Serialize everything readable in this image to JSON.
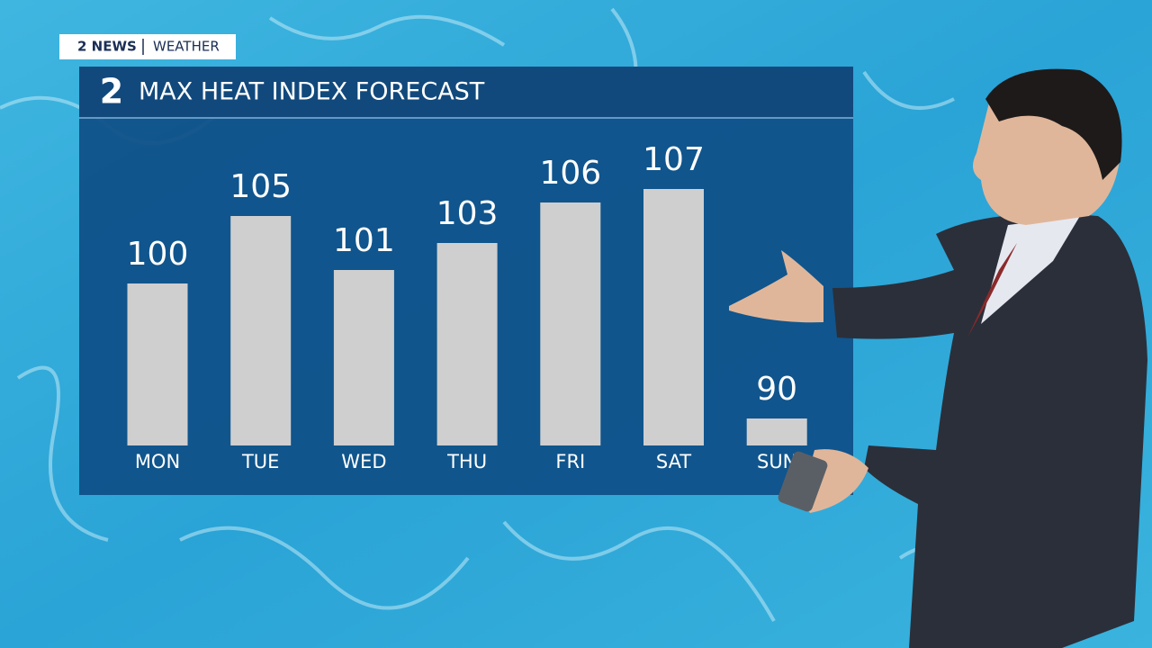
{
  "header": {
    "station": "2 NEWS",
    "section": "WEATHER"
  },
  "chart_data": {
    "type": "bar",
    "logo": "2",
    "title": "MAX HEAT INDEX FORECAST",
    "categories": [
      "MON",
      "TUE",
      "WED",
      "THU",
      "FRI",
      "SAT",
      "SUN"
    ],
    "values": [
      100,
      105,
      101,
      103,
      106,
      107,
      90
    ],
    "color": "#cfcfcf",
    "ylim": [
      88,
      108
    ]
  }
}
